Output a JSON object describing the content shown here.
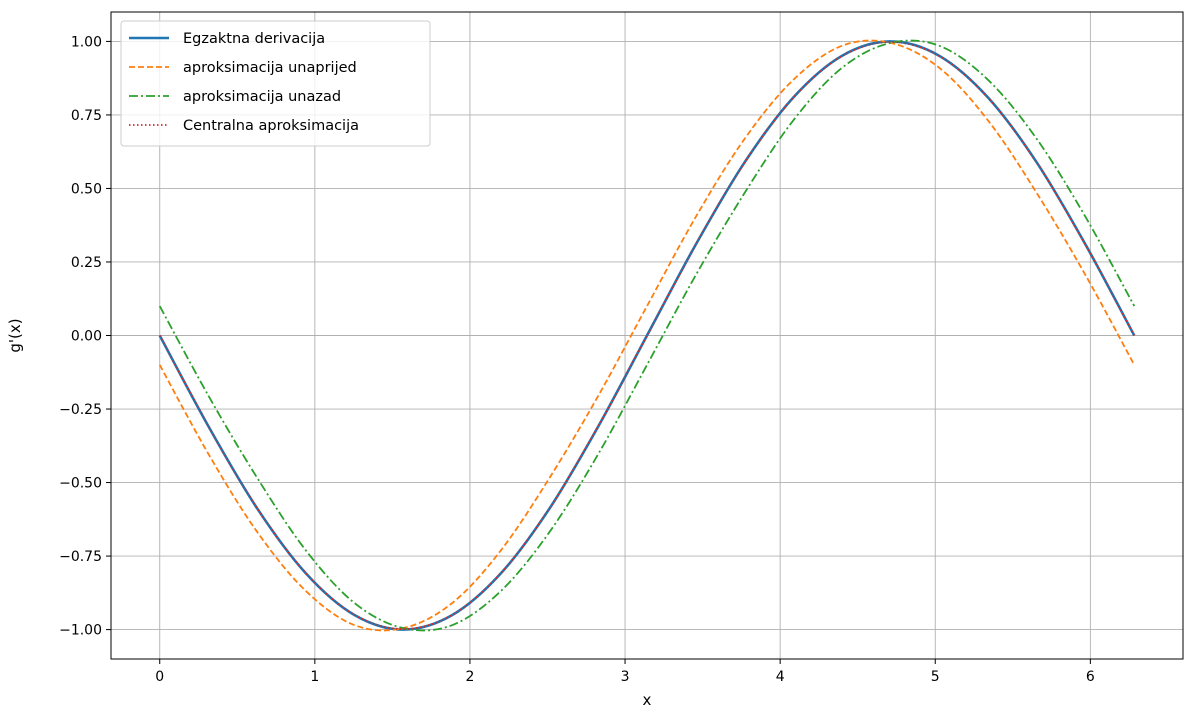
{
  "chart_data": {
    "type": "line",
    "xlabel": "x",
    "ylabel": "g'(x)",
    "xlim": [
      -0.3142,
      6.5973
    ],
    "ylim": [
      -1.1,
      1.1
    ],
    "x_ticks": [
      0,
      1,
      2,
      3,
      4,
      5,
      6
    ],
    "x_tick_labels": [
      "0",
      "1",
      "2",
      "3",
      "4",
      "5",
      "6"
    ],
    "y_ticks": [
      1.0,
      0.75,
      0.5,
      0.25,
      0.0,
      -0.25,
      -0.5,
      -0.75,
      -1.0
    ],
    "y_tick_labels": [
      "1.00",
      "0.75",
      "0.50",
      "0.25",
      "0.00",
      "−0.25",
      "−0.50",
      "−0.75",
      "−1.00"
    ],
    "grid": true,
    "legend_position": "top-left",
    "x": [
      0,
      0.3142,
      0.6283,
      0.9425,
      1.2566,
      1.5708,
      1.885,
      2.1991,
      2.5133,
      2.8274,
      3.1416,
      3.4558,
      3.7699,
      4.0841,
      4.3982,
      4.7124,
      5.0265,
      5.3407,
      5.6549,
      5.969,
      6.2832
    ],
    "series": [
      {
        "name": "Egzaktna derivacija",
        "color": "#1f77b4",
        "style": "solid",
        "values": [
          0,
          -0.309,
          -0.588,
          -0.809,
          -0.951,
          -1.0,
          -0.951,
          -0.809,
          -0.588,
          -0.309,
          0,
          0.309,
          0.588,
          0.809,
          0.951,
          1.0,
          0.951,
          0.809,
          0.588,
          0.309,
          0
        ]
      },
      {
        "name": "aproksimacija unaprijed",
        "color": "#ff7f0e",
        "style": "dashed",
        "values": [
          -0.1,
          -0.403,
          -0.668,
          -0.869,
          -0.985,
          -0.995,
          -0.91,
          -0.731,
          -0.484,
          -0.205,
          0.1,
          0.403,
          0.668,
          0.869,
          0.985,
          0.995,
          0.91,
          0.731,
          0.484,
          0.205,
          -0.1
        ]
      },
      {
        "name": "aproksimacija unazad",
        "color": "#2ca02c",
        "style": "dashdot",
        "values": [
          0.1,
          -0.205,
          -0.484,
          -0.731,
          -0.91,
          -0.995,
          -0.985,
          -0.869,
          -0.668,
          -0.403,
          -0.1,
          0.205,
          0.484,
          0.731,
          0.91,
          0.995,
          0.985,
          0.869,
          0.668,
          0.403,
          0.1
        ]
      },
      {
        "name": "Centralna aproksimacija",
        "color": "#d62728",
        "style": "dotted",
        "values": [
          0,
          -0.308,
          -0.587,
          -0.808,
          -0.95,
          -0.998,
          -0.95,
          -0.808,
          -0.587,
          -0.308,
          0,
          0.308,
          0.587,
          0.808,
          0.95,
          0.998,
          0.95,
          0.808,
          0.587,
          0.308,
          0
        ]
      }
    ]
  }
}
